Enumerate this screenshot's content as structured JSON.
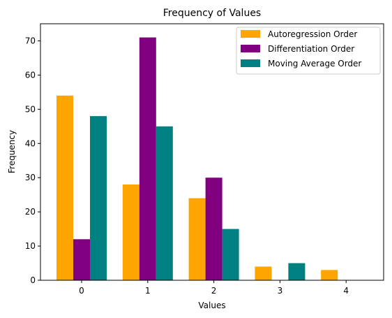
{
  "chart_data": {
    "type": "bar",
    "title": "Frequency of Values",
    "xlabel": "Values",
    "ylabel": "Frequency",
    "categories": [
      "0",
      "1",
      "2",
      "3",
      "4"
    ],
    "ylim": [
      0,
      75
    ],
    "yticks": [
      0,
      10,
      20,
      30,
      40,
      50,
      60,
      70
    ],
    "grid": false,
    "legend_position": "top-right",
    "series": [
      {
        "name": "Autoregression Order",
        "color": "#FFA500",
        "values": [
          54,
          28,
          24,
          4,
          3
        ]
      },
      {
        "name": "Differentiation Order",
        "color": "#800080",
        "values": [
          12,
          71,
          30,
          0,
          0
        ]
      },
      {
        "name": "Moving Average Order",
        "color": "#008080",
        "values": [
          48,
          45,
          15,
          5,
          0
        ]
      }
    ]
  }
}
